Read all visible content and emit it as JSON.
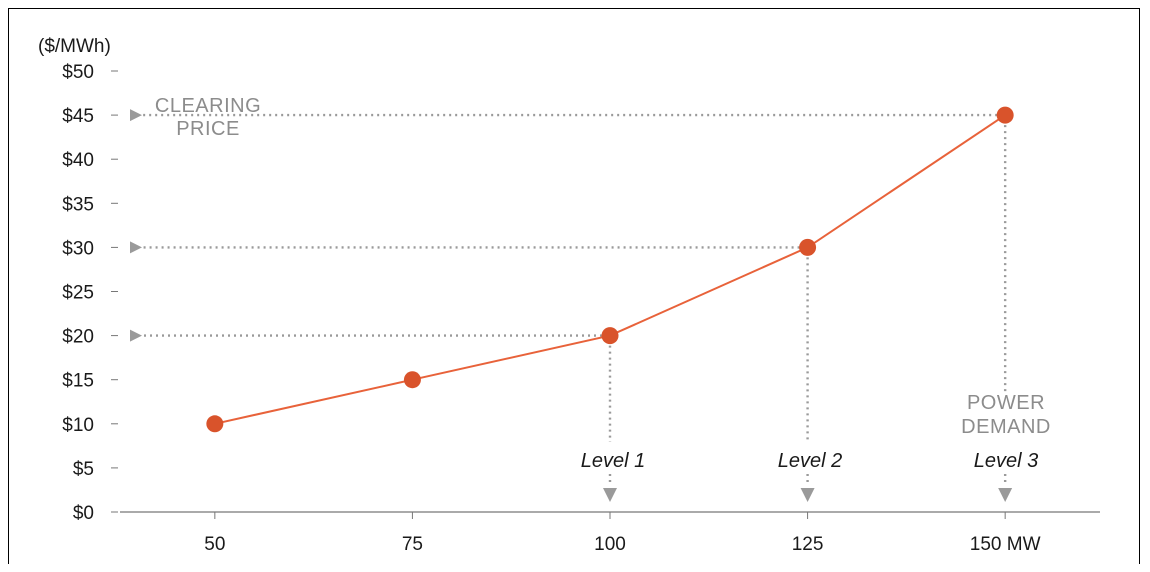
{
  "chart_data": {
    "type": "line",
    "ylabel": "($/MWh)",
    "x": [
      50,
      75,
      100,
      125,
      150
    ],
    "series": [
      {
        "values": [
          10,
          15,
          20,
          30,
          45
        ]
      }
    ],
    "xlim": [
      38,
      162
    ],
    "ylim": [
      0,
      50
    ],
    "x_ticks": [
      "50",
      "75",
      "100",
      "125",
      "150 MW"
    ],
    "y_ticks": [
      "$0",
      "$5",
      "$10",
      "$15",
      "$20",
      "$25",
      "$30",
      "$35",
      "$40",
      "$45",
      "$50"
    ],
    "grid": false,
    "line_color": "#e8623a",
    "marker_color": "#d9532b",
    "guide_color": "#9a9a9a",
    "annotations": {
      "clearing_price_line1": "CLEARING",
      "clearing_price_line2": "PRICE",
      "power_demand_line1": "POWER",
      "power_demand_line2": "DEMAND"
    },
    "levels": [
      {
        "label": "Level 1",
        "x": 100,
        "y": 20
      },
      {
        "label": "Level 2",
        "x": 125,
        "y": 30
      },
      {
        "label": "Level 3",
        "x": 150,
        "y": 45
      }
    ]
  }
}
